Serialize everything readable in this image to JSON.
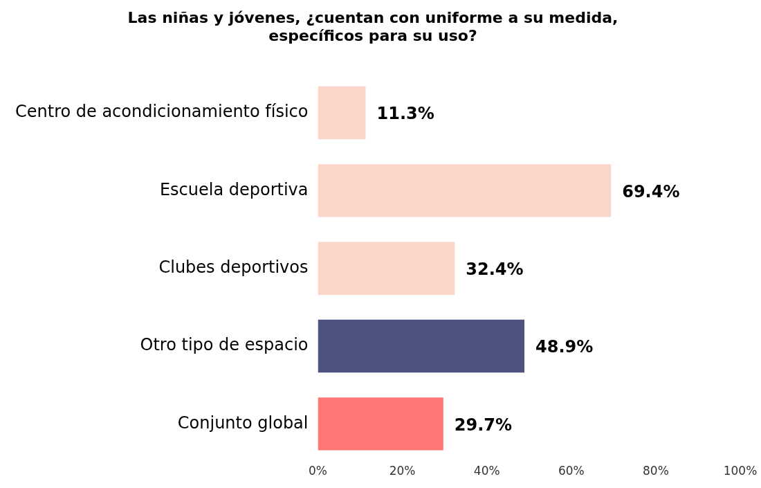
{
  "chart_data": {
    "type": "bar",
    "orientation": "horizontal",
    "title": "Las niñas y jóvenes, ¿cuentan con uniforme a su medida,\nespecíficos para su uso?",
    "categories": [
      "Centro de acondicionamiento físico",
      "Escuela deportiva",
      "Clubes deportivos",
      "Otro tipo de espacio",
      "Conjunto global"
    ],
    "values": [
      11.3,
      69.4,
      32.4,
      48.9,
      29.7
    ],
    "colors": [
      "#fcd5c9",
      "#fcd5c9",
      "#fcd5c9",
      "#4b537e",
      "#ff7675"
    ],
    "value_labels": [
      "11.3%",
      "69.4%",
      "32.4%",
      "48.9%",
      "29.7%"
    ],
    "xlim": [
      0,
      100
    ],
    "xticks": [
      {
        "value": 0,
        "label": "0%"
      },
      {
        "value": 20,
        "label": "20%"
      },
      {
        "value": 40,
        "label": "40%"
      },
      {
        "value": 60,
        "label": "60%"
      },
      {
        "value": 80,
        "label": "80%"
      },
      {
        "value": 100,
        "label": "100%"
      }
    ],
    "grid": false,
    "legend": false
  }
}
